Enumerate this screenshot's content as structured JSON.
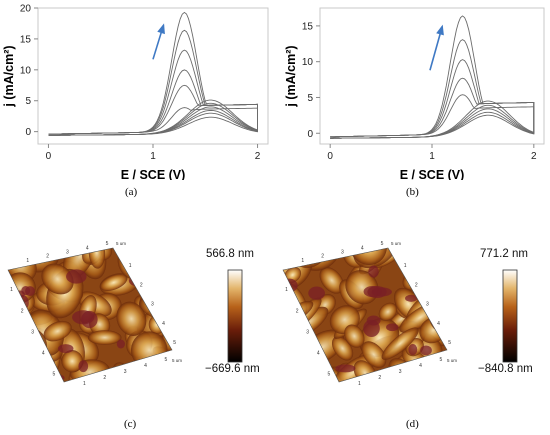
{
  "panels": {
    "a": {
      "label": "(a)"
    },
    "b": {
      "label": "(b)"
    },
    "c": {
      "label": "(c)",
      "scale_max": "566.8 nm",
      "scale_min": "−669.6 nm",
      "tick_unit": "5 um",
      "ticks": [
        "1",
        "2",
        "3",
        "4",
        "5"
      ]
    },
    "d": {
      "label": "(d)",
      "scale_max": "771.2 nm",
      "scale_min": "−840.8 nm",
      "tick_unit": "5 um",
      "ticks": [
        "1",
        "2",
        "3",
        "4",
        "5"
      ]
    }
  },
  "colors": {
    "curve": "#6b6b6b",
    "arrow": "#3f79c4",
    "axis": "#000000",
    "frame": "#c9c9c9"
  },
  "chart_data": [
    {
      "type": "line",
      "xlabel": "E / SCE (V)",
      "ylabel": "j (mA/cm²)",
      "xlim": [
        -0.1,
        2.1
      ],
      "ylim": [
        -2,
        20
      ],
      "xticks": [
        0,
        1,
        2
      ],
      "yticks": [
        0,
        5,
        10,
        15,
        20
      ],
      "arrow": {
        "from": [
          1.0,
          11.7
        ],
        "to": [
          1.1,
          17.2
        ]
      },
      "peak_heights": [
        19.3,
        16.4,
        13.2,
        10.0,
        7.5,
        3.9
      ],
      "baseline": [
        -0.4,
        -0.6
      ],
      "series": [
        {
          "x": [
            0,
            0.2,
            0.4,
            0.6,
            0.8,
            0.9,
            1.0,
            1.05,
            1.1,
            1.15,
            1.2,
            1.25,
            1.3,
            1.35,
            1.4,
            1.5,
            1.6,
            1.7,
            1.8,
            1.9,
            2.0
          ],
          "y": [
            -0.3,
            -0.2,
            -0.1,
            0.0,
            0.2,
            0.5,
            1.3,
            2.6,
            5.5,
            9.5,
            14.0,
            17.6,
            19.3,
            18.8,
            16.6,
            11.0,
            7.4,
            5.6,
            4.6,
            4.2,
            4.0
          ]
        }
      ]
    },
    {
      "type": "line",
      "xlabel": "E / SCE (V)",
      "ylabel": "j (mA/cm²)",
      "xlim": [
        -0.1,
        2.1
      ],
      "ylim": [
        -1.5,
        17.5
      ],
      "xticks": [
        0,
        1,
        2
      ],
      "yticks": [
        0,
        5,
        10,
        15
      ],
      "arrow": {
        "from": [
          0.98,
          8.8
        ],
        "to": [
          1.1,
          14.9
        ]
      },
      "peak_heights": [
        16.5,
        13.2,
        10.4,
        7.8,
        5.5
      ],
      "baseline": [
        -0.5,
        -0.7
      ]
    }
  ]
}
